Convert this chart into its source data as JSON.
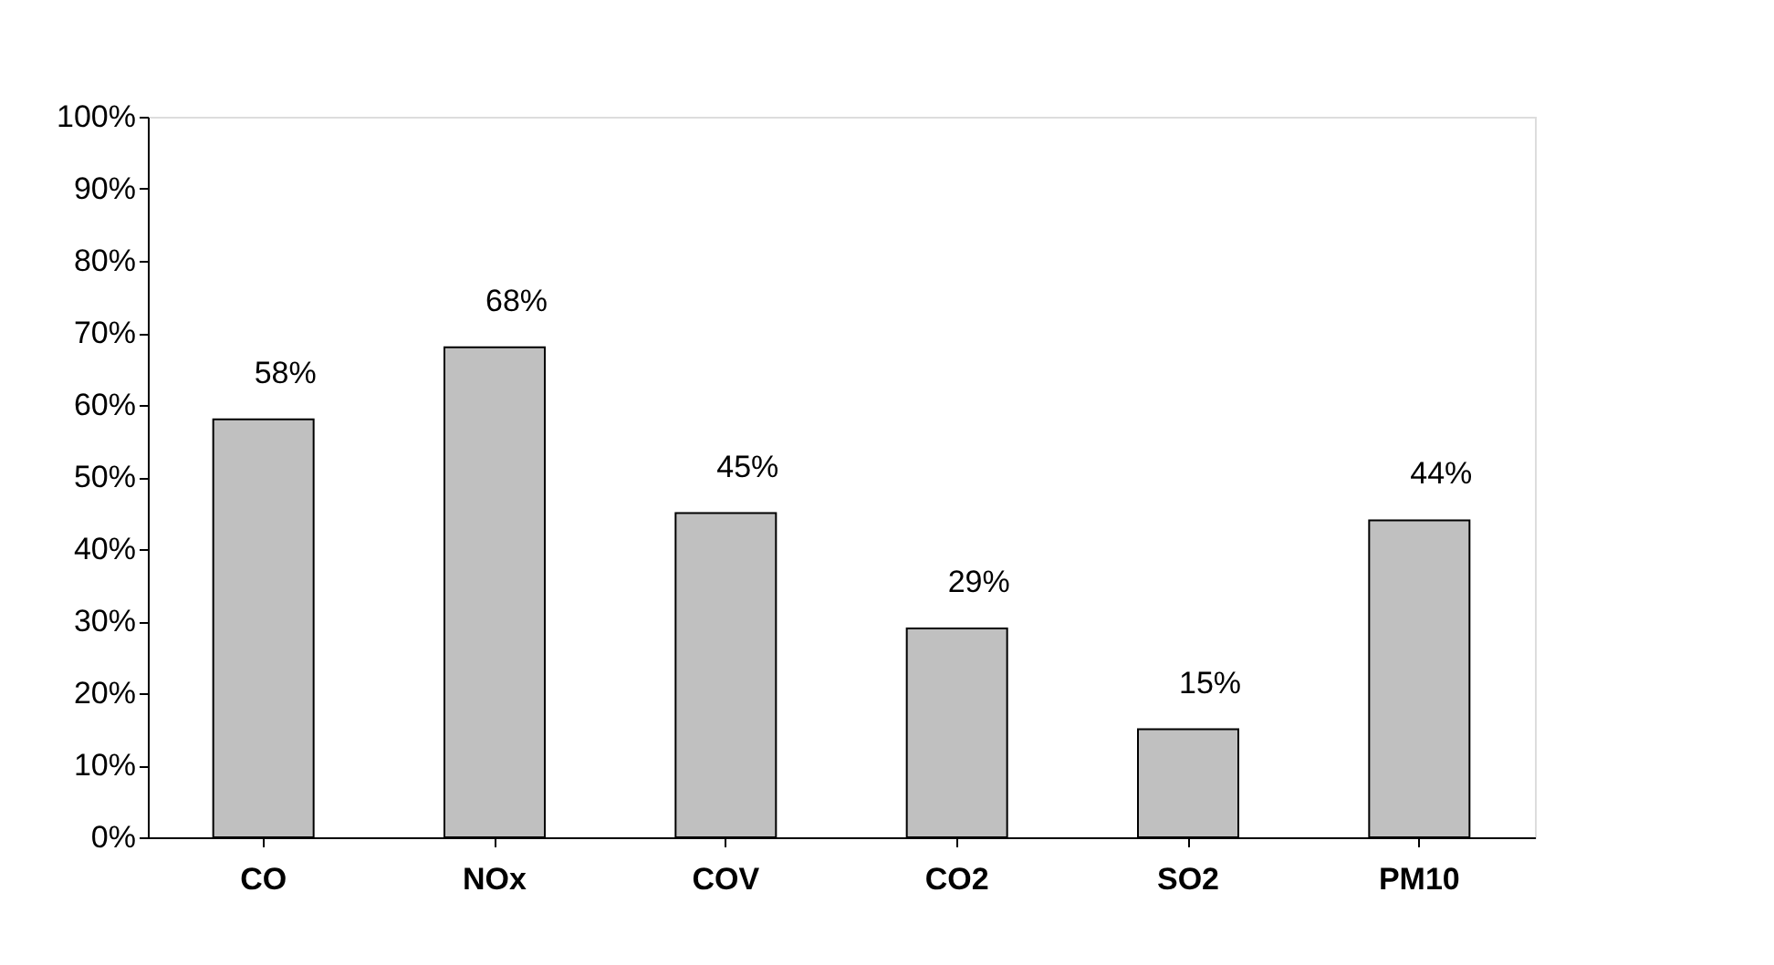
{
  "chart_data": {
    "type": "bar",
    "categories": [
      "CO",
      "NOx",
      "COV",
      "CO2",
      "SO2",
      "PM10"
    ],
    "values": [
      58,
      68,
      45,
      29,
      15,
      44
    ],
    "value_labels": [
      "58%",
      "68%",
      "45%",
      "29%",
      "15%",
      "44%"
    ],
    "color": "#c0c0c0",
    "ylim": [
      0,
      100
    ],
    "yticks": [
      {
        "value": 0,
        "label": "0%"
      },
      {
        "value": 10,
        "label": "10%"
      },
      {
        "value": 20,
        "label": "20%"
      },
      {
        "value": 30,
        "label": "30%"
      },
      {
        "value": 40,
        "label": "40%"
      },
      {
        "value": 50,
        "label": "50%"
      },
      {
        "value": 60,
        "label": "60%"
      },
      {
        "value": 70,
        "label": "70%"
      },
      {
        "value": 80,
        "label": "80%"
      },
      {
        "value": 90,
        "label": "90%"
      },
      {
        "value": 100,
        "label": "100%"
      }
    ],
    "grid": false
  }
}
